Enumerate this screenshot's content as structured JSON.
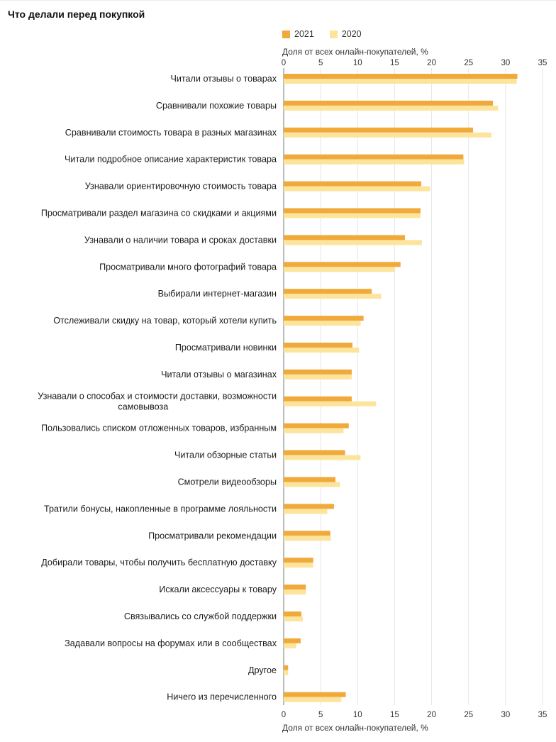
{
  "chart_data": {
    "type": "bar",
    "orientation": "horizontal",
    "title": "Что делали перед покупкой",
    "xlabel": "Доля от всех онлайн-покупателей, %",
    "xlim": [
      0,
      35
    ],
    "xticks": [
      0,
      5,
      10,
      15,
      20,
      25,
      30,
      35
    ],
    "grid": true,
    "legend_position": "top",
    "categories": [
      "Читали отзывы о товарах",
      "Сравнивали похожие товары",
      "Сравнивали стоимость товара в разных магазинах",
      "Читали подробное описание характеристик товара",
      "Узнавали ориентировочную стоимость товара",
      "Просматривали раздел магазина со скидками и акциями",
      "Узнавали о наличии товара и сроках доставки",
      "Просматривали много фотографий товара",
      "Выбирали интернет-магазин",
      "Отслеживали скидку на товар, который хотели купить",
      "Просматривали новинки",
      "Читали отзывы о магазинах",
      "Узнавали о способах и стоимости доставки, возможности самовывоза",
      "Пользовались списком отложенных товаров, избранным",
      "Читали обзорные статьи",
      "Смотрели видеообзоры",
      "Тратили бонусы, накопленные в программе лояльности",
      "Просматривали рекомендации",
      "Добирали товары, чтобы получить бесплатную доставку",
      "Искали аксессуары к товару",
      "Связывались со службой поддержки",
      "Задавали вопросы на форумах или в сообществах",
      "Другое",
      "Ничего из перечисленного"
    ],
    "series": [
      {
        "name": "2021",
        "color": "#f0a93b",
        "values": [
          31.6,
          28.3,
          25.6,
          24.3,
          18.6,
          18.5,
          16.4,
          15.8,
          11.9,
          10.8,
          9.3,
          9.2,
          9.2,
          8.8,
          8.3,
          7.0,
          6.8,
          6.3,
          4.0,
          3.0,
          2.4,
          2.3,
          0.6,
          8.4
        ]
      },
      {
        "name": "2020",
        "color": "#fde49c",
        "values": [
          31.5,
          29.0,
          28.1,
          24.4,
          19.8,
          18.5,
          18.7,
          15.0,
          13.2,
          10.4,
          10.2,
          9.2,
          12.5,
          8.1,
          10.4,
          7.6,
          5.9,
          6.4,
          4.0,
          3.0,
          2.6,
          1.7,
          0.6,
          7.8
        ]
      }
    ]
  }
}
